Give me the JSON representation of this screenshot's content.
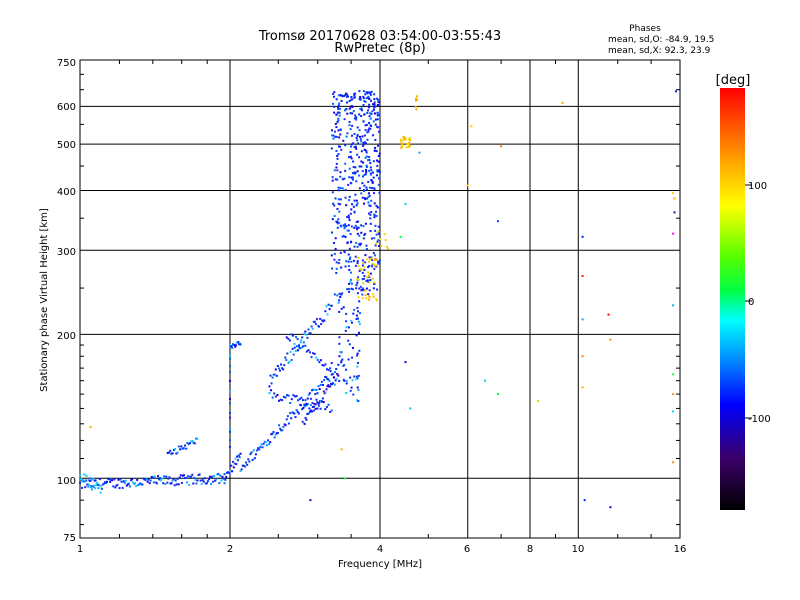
{
  "chart_data": {
    "type": "scatter",
    "title": "Tromsø 20170628 03:54:00-03:55:43",
    "subtitle": "RwPretec (8p)",
    "xlabel": "Frequency [MHz]",
    "ylabel": "Stationary phase Virtual Height [km]",
    "xscale": "log",
    "yscale": "log",
    "xlim": [
      1,
      16
    ],
    "ylim": [
      75,
      750
    ],
    "x_ticks": [
      "1",
      "2",
      "4",
      "6",
      "8",
      "10",
      "16"
    ],
    "y_ticks": [
      "75",
      "100",
      "200",
      "300",
      "400",
      "500",
      "600",
      "750"
    ],
    "phases_label": "Phases",
    "phases_o": "mean, sd,O: -84.9, 19.5",
    "phases_x": "mean, sd,X:  92.3, 23.9",
    "colorbar": {
      "label": "[deg]",
      "min": -180,
      "max": 180,
      "ticks": [
        "100",
        "0",
        "-100"
      ]
    },
    "points_summary": "Blue O-mode trace: ~97-100 km from 1.0 to 1.95 MHz, rising through 2-3.3 MHz to 150-300 km, vertical column 3.3-4.0 MHz from 250 to 650 km; yellow X-mode points near 3.6-4.6 MHz at 250-650 km; scattered noise points at higher frequencies."
  }
}
